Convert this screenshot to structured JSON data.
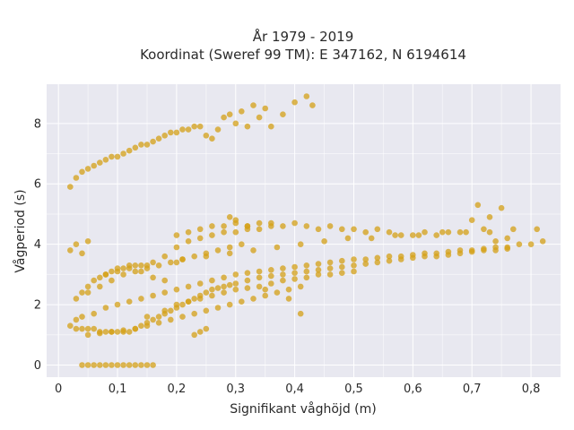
{
  "chart_data": {
    "type": "scatter",
    "title": "År 1979 - 2019",
    "subtitle": "Koordinat (Sweref 99 TM): E 347162, N 6194614",
    "xlabel": "Signifikant våghöjd (m)",
    "ylabel": "Vågperiod (s)",
    "xlim": [
      -0.02,
      0.85
    ],
    "ylim": [
      -0.4,
      9.3
    ],
    "xticks": [
      0,
      0.1,
      0.2,
      0.3,
      0.4,
      0.5,
      0.6,
      0.7,
      0.8
    ],
    "xtick_labels": [
      "0",
      "0,1",
      "0,2",
      "0,3",
      "0,4",
      "0,5",
      "0,6",
      "0,7",
      "0,8"
    ],
    "yticks": [
      0,
      2,
      4,
      6,
      8
    ],
    "ytick_labels": [
      "0",
      "2",
      "4",
      "6",
      "8"
    ],
    "grid": true,
    "marker_color": "#d4a017",
    "series": [
      {
        "x": [
          0.02,
          0.03,
          0.04,
          0.05,
          0.06,
          0.07,
          0.08,
          0.09,
          0.1,
          0.11,
          0.12,
          0.13,
          0.14,
          0.15,
          0.16,
          0.17,
          0.18,
          0.19,
          0.2,
          0.21,
          0.22,
          0.23,
          0.24,
          0.25,
          0.26,
          0.27,
          0.28,
          0.29,
          0.3,
          0.31,
          0.32,
          0.33,
          0.34,
          0.35,
          0.36,
          0.38,
          0.4,
          0.42,
          0.43,
          0.03,
          0.04,
          0.06,
          0.08,
          0.1,
          0.12,
          0.14,
          0.16,
          0.18,
          0.2,
          0.22,
          0.24,
          0.26,
          0.28,
          0.3,
          0.32,
          0.34,
          0.36,
          0.38,
          0.4,
          0.42,
          0.44,
          0.46,
          0.48,
          0.5,
          0.52,
          0.54,
          0.56,
          0.58,
          0.6,
          0.62,
          0.64,
          0.66,
          0.68,
          0.7,
          0.72,
          0.74,
          0.76,
          0.78,
          0.8,
          0.82,
          0.02,
          0.03,
          0.04,
          0.05,
          0.06,
          0.07,
          0.08,
          0.09,
          0.1,
          0.11,
          0.12,
          0.13,
          0.14,
          0.15,
          0.16,
          0.17,
          0.18,
          0.19,
          0.2,
          0.21,
          0.22,
          0.23,
          0.24,
          0.25,
          0.26,
          0.27,
          0.28,
          0.29,
          0.3,
          0.32,
          0.34,
          0.36,
          0.38,
          0.4,
          0.42,
          0.44,
          0.46,
          0.48,
          0.5,
          0.52,
          0.54,
          0.56,
          0.58,
          0.6,
          0.62,
          0.64,
          0.66,
          0.68,
          0.7,
          0.72,
          0.74,
          0.76,
          0.04,
          0.05,
          0.06,
          0.07,
          0.08,
          0.09,
          0.1,
          0.11,
          0.12,
          0.13,
          0.14,
          0.15,
          0.16,
          0.18,
          0.2,
          0.22,
          0.24,
          0.26,
          0.28,
          0.3,
          0.32,
          0.36,
          0.04,
          0.05,
          0.06,
          0.07,
          0.08,
          0.09,
          0.1,
          0.11,
          0.12,
          0.13,
          0.14,
          0.15,
          0.16,
          0.02,
          0.03,
          0.04,
          0.05,
          0.2,
          0.22,
          0.24,
          0.26,
          0.28,
          0.3,
          0.32,
          0.34,
          0.36,
          0.38,
          0.4,
          0.42,
          0.44,
          0.46,
          0.48,
          0.5,
          0.52,
          0.54,
          0.56,
          0.58,
          0.6,
          0.62,
          0.64,
          0.66,
          0.68,
          0.7,
          0.72,
          0.74,
          0.76,
          0.15,
          0.18,
          0.2,
          0.22,
          0.24,
          0.26,
          0.28,
          0.3,
          0.32,
          0.34,
          0.36,
          0.38,
          0.4,
          0.42,
          0.44,
          0.46,
          0.48,
          0.5,
          0.03,
          0.05,
          0.07,
          0.09,
          0.11,
          0.13,
          0.15,
          0.17,
          0.19,
          0.21,
          0.23,
          0.25,
          0.27,
          0.29,
          0.31,
          0.05,
          0.07,
          0.09,
          0.11,
          0.13,
          0.15,
          0.17,
          0.19,
          0.21,
          0.23,
          0.25,
          0.27,
          0.29,
          0.31,
          0.33,
          0.35,
          0.37,
          0.39,
          0.41,
          0.21,
          0.25,
          0.29,
          0.33,
          0.37,
          0.41,
          0.45,
          0.49,
          0.53,
          0.57,
          0.61,
          0.65,
          0.69,
          0.73,
          0.77,
          0.81,
          0.41,
          0.39,
          0.35,
          0.71,
          0.75,
          0.73,
          0.29,
          0.3,
          0.32,
          0.34,
          0.25,
          0.24,
          0.23,
          0.08,
          0.1,
          0.12,
          0.14,
          0.16,
          0.18,
          0.2
        ],
        "y": [
          5.9,
          6.2,
          6.4,
          6.5,
          6.6,
          6.7,
          6.8,
          6.9,
          6.9,
          7.0,
          7.1,
          7.2,
          7.3,
          7.3,
          7.4,
          7.5,
          7.6,
          7.7,
          7.7,
          7.8,
          7.8,
          7.9,
          7.9,
          7.6,
          7.5,
          7.8,
          8.2,
          8.3,
          8.0,
          8.4,
          7.9,
          8.6,
          8.2,
          8.5,
          7.9,
          8.3,
          8.7,
          8.9,
          8.6,
          1.5,
          1.6,
          1.7,
          1.9,
          2.0,
          2.1,
          2.2,
          2.3,
          2.4,
          2.5,
          2.6,
          2.7,
          2.8,
          2.9,
          3.0,
          3.05,
          3.1,
          3.15,
          3.2,
          3.25,
          3.3,
          3.35,
          3.4,
          3.45,
          3.5,
          3.5,
          3.55,
          3.6,
          3.6,
          3.65,
          3.7,
          3.7,
          3.75,
          3.8,
          3.8,
          3.85,
          3.9,
          3.9,
          4.0,
          4.0,
          4.1,
          1.3,
          1.2,
          1.2,
          1.2,
          1.2,
          1.1,
          1.1,
          1.1,
          1.1,
          1.1,
          1.1,
          1.2,
          1.3,
          1.4,
          1.5,
          1.6,
          1.7,
          1.8,
          1.9,
          2.0,
          2.1,
          2.2,
          2.3,
          2.4,
          2.5,
          2.55,
          2.6,
          2.65,
          2.7,
          2.8,
          2.9,
          2.95,
          3.0,
          3.05,
          3.1,
          3.15,
          3.2,
          3.25,
          3.3,
          3.35,
          3.4,
          3.45,
          3.5,
          3.55,
          3.6,
          3.6,
          3.65,
          3.7,
          3.75,
          3.8,
          3.8,
          3.85,
          2.4,
          2.6,
          2.8,
          2.9,
          3.0,
          3.1,
          3.1,
          3.2,
          3.2,
          3.3,
          3.3,
          3.3,
          3.4,
          3.6,
          3.9,
          4.1,
          4.2,
          4.3,
          4.4,
          4.4,
          4.5,
          4.6,
          0,
          0,
          0,
          0,
          0,
          0,
          0,
          0,
          0,
          0,
          0,
          0,
          0,
          3.8,
          4.0,
          3.7,
          4.1,
          4.3,
          4.4,
          4.5,
          4.6,
          4.6,
          4.7,
          4.6,
          4.5,
          4.7,
          4.6,
          4.7,
          4.6,
          4.5,
          4.6,
          4.5,
          4.5,
          4.4,
          4.5,
          4.4,
          4.3,
          4.3,
          4.4,
          4.3,
          4.4,
          4.4,
          4.8,
          4.5,
          4.1,
          4.2,
          1.6,
          1.8,
          2.0,
          2.1,
          2.2,
          2.3,
          2.4,
          2.5,
          2.55,
          2.6,
          2.7,
          2.8,
          2.85,
          2.9,
          3.0,
          3.0,
          3.05,
          3.1,
          2.2,
          2.4,
          2.6,
          2.8,
          3.0,
          3.1,
          3.2,
          3.3,
          3.4,
          3.5,
          3.6,
          3.7,
          3.8,
          3.9,
          4.0,
          1.0,
          1.05,
          1.1,
          1.15,
          1.2,
          1.3,
          1.4,
          1.5,
          1.6,
          1.7,
          1.8,
          1.9,
          2.0,
          2.1,
          2.2,
          2.3,
          2.4,
          2.5,
          2.6,
          3.5,
          3.6,
          3.7,
          3.8,
          3.9,
          4.0,
          4.1,
          4.2,
          4.2,
          4.3,
          4.3,
          4.4,
          4.4,
          4.4,
          4.5,
          4.5,
          1.7,
          2.2,
          2.5,
          5.3,
          5.2,
          4.9,
          4.9,
          4.8,
          4.6,
          4.7,
          1.2,
          1.1,
          1.0,
          3.0,
          3.2,
          3.3,
          3.1,
          2.9,
          2.8,
          3.4
        ]
      }
    ]
  }
}
